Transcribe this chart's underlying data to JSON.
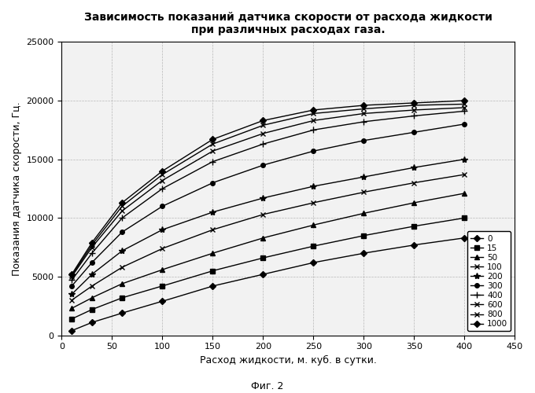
{
  "title": "Зависимость показаний датчика скорости от расхода жидкости\nпри различных расходах газа.",
  "xlabel": "Расход жидкости, м. куб. в сутки.",
  "ylabel": "Показания датчика скорости, Гц.",
  "fig_label": "Фиг. 2",
  "xlim": [
    0,
    450
  ],
  "ylim": [
    0,
    25000
  ],
  "xticks": [
    0,
    50,
    100,
    150,
    200,
    250,
    300,
    350,
    400,
    450
  ],
  "yticks": [
    0,
    5000,
    10000,
    15000,
    20000,
    25000
  ],
  "background": "#f2f2f2",
  "plot_bg": "#f2f2f2",
  "grid_color": "#aaaaaa",
  "series": [
    {
      "label": "0",
      "marker": "D",
      "x": [
        10,
        30,
        60,
        100,
        150,
        200,
        250,
        300,
        350,
        400
      ],
      "y": [
        400,
        1100,
        1900,
        2900,
        4200,
        5200,
        6200,
        7000,
        7700,
        8300
      ]
    },
    {
      "label": "15",
      "marker": "s",
      "x": [
        10,
        30,
        60,
        100,
        150,
        200,
        250,
        300,
        350,
        400
      ],
      "y": [
        1400,
        2200,
        3200,
        4200,
        5500,
        6600,
        7600,
        8500,
        9300,
        10000
      ]
    },
    {
      "label": "50",
      "marker": "^",
      "x": [
        10,
        30,
        60,
        100,
        150,
        200,
        250,
        300,
        350,
        400
      ],
      "y": [
        2300,
        3200,
        4400,
        5600,
        7000,
        8300,
        9400,
        10400,
        11300,
        12100
      ]
    },
    {
      "label": "100",
      "marker": "x",
      "x": [
        10,
        30,
        60,
        100,
        150,
        200,
        250,
        300,
        350,
        400
      ],
      "y": [
        3000,
        4200,
        5800,
        7400,
        9000,
        10300,
        11300,
        12200,
        13000,
        13700
      ]
    },
    {
      "label": "200",
      "marker": "*",
      "x": [
        10,
        30,
        60,
        100,
        150,
        200,
        250,
        300,
        350,
        400
      ],
      "y": [
        3500,
        5200,
        7200,
        9000,
        10500,
        11700,
        12700,
        13500,
        14300,
        15000
      ]
    },
    {
      "label": "300",
      "marker": "o",
      "x": [
        10,
        30,
        60,
        100,
        150,
        200,
        250,
        300,
        350,
        400
      ],
      "y": [
        4200,
        6200,
        8800,
        11000,
        13000,
        14500,
        15700,
        16600,
        17300,
        18000
      ]
    },
    {
      "label": "400",
      "marker": "+",
      "x": [
        10,
        30,
        60,
        100,
        150,
        200,
        250,
        300,
        350,
        400
      ],
      "y": [
        4700,
        7000,
        10000,
        12500,
        14800,
        16300,
        17500,
        18200,
        18700,
        19100
      ]
    },
    {
      "label": "600",
      "marker": "x",
      "x": [
        10,
        30,
        60,
        100,
        150,
        200,
        250,
        300,
        350,
        400
      ],
      "y": [
        5000,
        7500,
        10600,
        13200,
        15700,
        17200,
        18300,
        18900,
        19200,
        19400
      ]
    },
    {
      "label": "800",
      "marker": "x",
      "x": [
        10,
        30,
        60,
        100,
        150,
        200,
        250,
        300,
        350,
        400
      ],
      "y": [
        5100,
        7700,
        11000,
        13700,
        16300,
        17900,
        18900,
        19300,
        19600,
        19700
      ]
    },
    {
      "label": "1000",
      "marker": "D",
      "x": [
        10,
        30,
        60,
        100,
        150,
        200,
        250,
        300,
        350,
        400
      ],
      "y": [
        5200,
        7900,
        11300,
        14000,
        16700,
        18300,
        19200,
        19600,
        19800,
        20000
      ]
    }
  ]
}
